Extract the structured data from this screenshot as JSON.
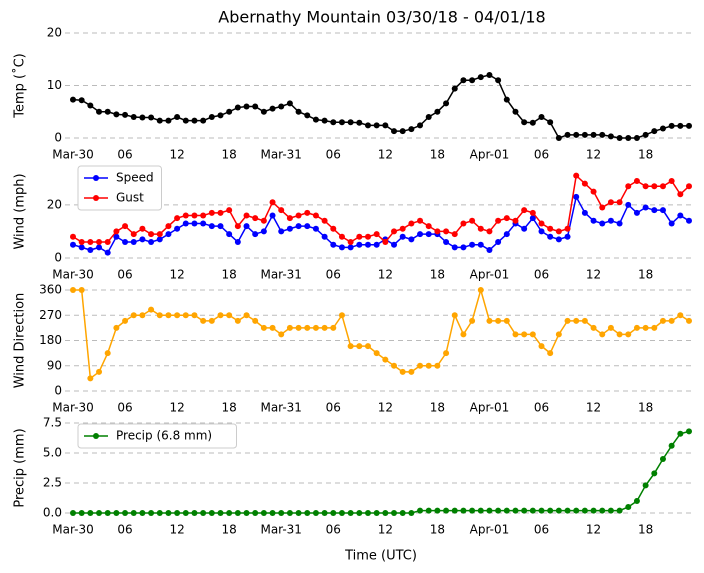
{
  "chart_data": [
    {
      "type": "line",
      "title": "Abernathy Mountain 03/30/18 - 04/01/18",
      "y_label": "Temp (˚C)",
      "categories": [
        "Mar-30",
        null,
        null,
        null,
        null,
        null,
        "06",
        null,
        null,
        null,
        null,
        null,
        "12",
        null,
        null,
        null,
        null,
        null,
        "18",
        null,
        null,
        null,
        null,
        null,
        "Mar-31",
        null,
        null,
        null,
        null,
        null,
        "06",
        null,
        null,
        null,
        null,
        null,
        "12",
        null,
        null,
        null,
        null,
        null,
        "18",
        null,
        null,
        null,
        null,
        null,
        "Apr-01",
        null,
        null,
        null,
        null,
        null,
        "06",
        null,
        null,
        null,
        null,
        null,
        "12",
        null,
        null,
        null,
        null,
        null,
        "18",
        null,
        null,
        null,
        null,
        null
      ],
      "series": [
        {
          "name": "Temp",
          "color": "#000000",
          "values": [
            7.3,
            7.2,
            6.2,
            5.0,
            5.0,
            4.5,
            4.4,
            4.0,
            3.9,
            3.9,
            3.3,
            3.3,
            4.0,
            3.3,
            3.3,
            3.3,
            4.0,
            4.3,
            5.0,
            5.8,
            6.0,
            6.0,
            5.0,
            5.6,
            6.0,
            6.6,
            5.0,
            4.3,
            3.5,
            3.3,
            3.0,
            3.0,
            3.0,
            2.9,
            2.4,
            2.4,
            2.4,
            1.3,
            1.3,
            1.7,
            2.4,
            4.0,
            5.0,
            6.6,
            9.4,
            11.0,
            11.0,
            11.6,
            12.0,
            11.0,
            7.3,
            5.0,
            3.0,
            2.9,
            4.0,
            3.0,
            0.0,
            0.6,
            0.6,
            0.6,
            0.6,
            0.6,
            0.3,
            0.0,
            0.0,
            0.0,
            0.6,
            1.3,
            1.8,
            2.3,
            2.3,
            2.3
          ]
        }
      ],
      "ylim": [
        0,
        20
      ],
      "yticks": [
        0,
        10,
        20
      ],
      "grid": true,
      "legend": false
    },
    {
      "type": "line",
      "y_label": "Wind (mph)",
      "categories": [
        "Mar-30",
        null,
        null,
        null,
        null,
        null,
        "06",
        null,
        null,
        null,
        null,
        null,
        "12",
        null,
        null,
        null,
        null,
        null,
        "18",
        null,
        null,
        null,
        null,
        null,
        "Mar-31",
        null,
        null,
        null,
        null,
        null,
        "06",
        null,
        null,
        null,
        null,
        null,
        "12",
        null,
        null,
        null,
        null,
        null,
        "18",
        null,
        null,
        null,
        null,
        null,
        "Apr-01",
        null,
        null,
        null,
        null,
        null,
        "06",
        null,
        null,
        null,
        null,
        null,
        "12",
        null,
        null,
        null,
        null,
        null,
        "18",
        null,
        null,
        null,
        null,
        null
      ],
      "series": [
        {
          "name": "Speed",
          "color": "#0000ff",
          "values": [
            5,
            4,
            3,
            4,
            2,
            8,
            6,
            6,
            7,
            6,
            7,
            9,
            11,
            13,
            13,
            13,
            12,
            12,
            9,
            6,
            12,
            9,
            10,
            16,
            10,
            11,
            12,
            12,
            11,
            8,
            5,
            4,
            4,
            5,
            5,
            5,
            7,
            5,
            8,
            7,
            9,
            9,
            9,
            6,
            4,
            4,
            5,
            5,
            3,
            6,
            9,
            13,
            11,
            15,
            10,
            8,
            7,
            8,
            23,
            17,
            14,
            13,
            14,
            13,
            20,
            17,
            19,
            18,
            18,
            13,
            16,
            14
          ]
        },
        {
          "name": "Gust",
          "color": "#ff0000",
          "values": [
            8,
            6,
            6,
            6,
            6,
            10,
            12,
            9,
            11,
            9,
            9,
            12,
            15,
            16,
            16,
            16,
            17,
            17,
            18,
            12,
            16,
            15,
            14,
            21,
            18,
            15,
            16,
            17,
            16,
            14,
            11,
            8,
            6,
            8,
            8,
            9,
            6,
            10,
            11,
            13,
            14,
            12,
            10,
            10,
            9,
            13,
            14,
            11,
            10,
            14,
            15,
            14,
            18,
            17,
            13,
            11,
            10,
            11,
            31,
            28,
            25,
            19,
            21,
            21,
            27,
            29,
            27,
            27,
            27,
            29,
            24,
            27
          ]
        }
      ],
      "ylim": [
        0,
        35
      ],
      "yticks": [
        0,
        20
      ],
      "grid": true,
      "legend": "upper left"
    },
    {
      "type": "line",
      "y_label": "Wind Direction",
      "categories": [
        "Mar-30",
        null,
        null,
        null,
        null,
        null,
        "06",
        null,
        null,
        null,
        null,
        null,
        "12",
        null,
        null,
        null,
        null,
        null,
        "18",
        null,
        null,
        null,
        null,
        null,
        "Mar-31",
        null,
        null,
        null,
        null,
        null,
        "06",
        null,
        null,
        null,
        null,
        null,
        "12",
        null,
        null,
        null,
        null,
        null,
        "18",
        null,
        null,
        null,
        null,
        null,
        "Apr-01",
        null,
        null,
        null,
        null,
        null,
        "06",
        null,
        null,
        null,
        null,
        null,
        "12",
        null,
        null,
        null,
        null,
        null,
        "18",
        null,
        null,
        null,
        null,
        null
      ],
      "series": [
        {
          "name": "Direction",
          "color": "#ffa500",
          "values": [
            360,
            360,
            45,
            68,
            135,
            225,
            250,
            270,
            270,
            290,
            270,
            270,
            270,
            270,
            270,
            250,
            250,
            270,
            270,
            250,
            270,
            250,
            225,
            225,
            202,
            225,
            225,
            225,
            225,
            225,
            225,
            270,
            160,
            160,
            160,
            135,
            112,
            90,
            68,
            68,
            90,
            90,
            90,
            135,
            270,
            202,
            250,
            360,
            250,
            250,
            250,
            202,
            202,
            202,
            160,
            135,
            202,
            250,
            250,
            250,
            225,
            202,
            225,
            202,
            202,
            225,
            225,
            225,
            250,
            250,
            270,
            250
          ]
        }
      ],
      "ylim": [
        0,
        360
      ],
      "yticks": [
        0,
        90,
        180,
        270,
        360
      ],
      "grid": true,
      "legend": false
    },
    {
      "type": "line",
      "y_label": "Precip (mm)",
      "x_label": "Time (UTC)",
      "categories": [
        "Mar-30",
        null,
        null,
        null,
        null,
        null,
        "06",
        null,
        null,
        null,
        null,
        null,
        "12",
        null,
        null,
        null,
        null,
        null,
        "18",
        null,
        null,
        null,
        null,
        null,
        "Mar-31",
        null,
        null,
        null,
        null,
        null,
        "06",
        null,
        null,
        null,
        null,
        null,
        "12",
        null,
        null,
        null,
        null,
        null,
        "18",
        null,
        null,
        null,
        null,
        null,
        "Apr-01",
        null,
        null,
        null,
        null,
        null,
        "06",
        null,
        null,
        null,
        null,
        null,
        "12",
        null,
        null,
        null,
        null,
        null,
        "18",
        null,
        null,
        null,
        null,
        null
      ],
      "series": [
        {
          "name": "Precip (6.8 mm)",
          "color": "#008000",
          "values": [
            0,
            0,
            0,
            0,
            0,
            0,
            0,
            0,
            0,
            0,
            0,
            0,
            0,
            0,
            0,
            0,
            0,
            0,
            0,
            0,
            0,
            0,
            0,
            0,
            0,
            0,
            0,
            0,
            0,
            0,
            0,
            0,
            0,
            0,
            0,
            0,
            0,
            0,
            0,
            0,
            0.2,
            0.2,
            0.2,
            0.2,
            0.2,
            0.2,
            0.2,
            0.2,
            0.2,
            0.2,
            0.2,
            0.2,
            0.2,
            0.2,
            0.2,
            0.2,
            0.2,
            0.2,
            0.2,
            0.2,
            0.2,
            0.2,
            0.2,
            0.2,
            0.5,
            1.0,
            2.3,
            3.3,
            4.5,
            5.6,
            6.6,
            6.8
          ]
        }
      ],
      "ylim": [
        0,
        7.5
      ],
      "yticks": [
        {
          "value": 0,
          "label": "0.0"
        },
        2.5,
        {
          "value": 5,
          "label": "5.0"
        },
        7.5
      ],
      "grid": true,
      "legend": "upper left"
    }
  ]
}
